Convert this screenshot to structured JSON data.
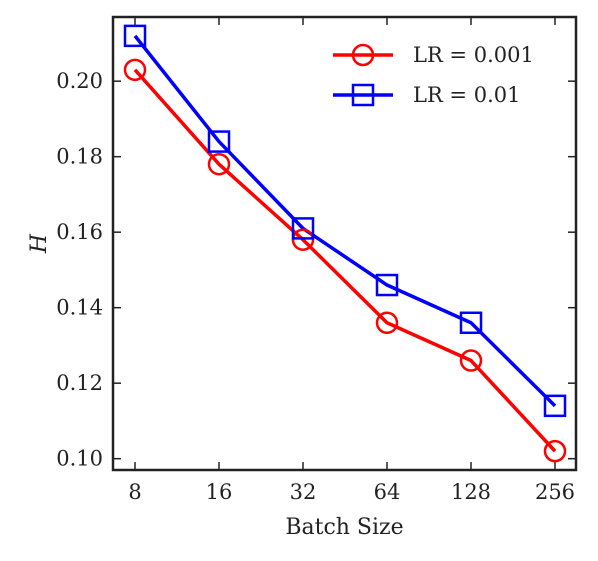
{
  "chart_data": {
    "type": "line",
    "xlabel": "Batch Size",
    "ylabel": "H",
    "categories": [
      "8",
      "16",
      "32",
      "64",
      "128",
      "256"
    ],
    "ylim": [
      0.097,
      0.217
    ],
    "yticks": [
      "0.10",
      "0.12",
      "0.14",
      "0.16",
      "0.18",
      "0.20"
    ],
    "y_tick_values": [
      0.1,
      0.12,
      0.14,
      0.16,
      0.18,
      0.2
    ],
    "legend_position": "top-right",
    "grid": false,
    "series": [
      {
        "name": "LR = 0.001",
        "color": "#ff0000",
        "marker": "circle",
        "values": [
          0.203,
          0.178,
          0.158,
          0.136,
          0.126,
          0.102
        ]
      },
      {
        "name": "LR = 0.01",
        "color": "#0000ff",
        "marker": "square",
        "values": [
          0.212,
          0.184,
          0.161,
          0.146,
          0.136,
          0.114
        ]
      }
    ]
  }
}
